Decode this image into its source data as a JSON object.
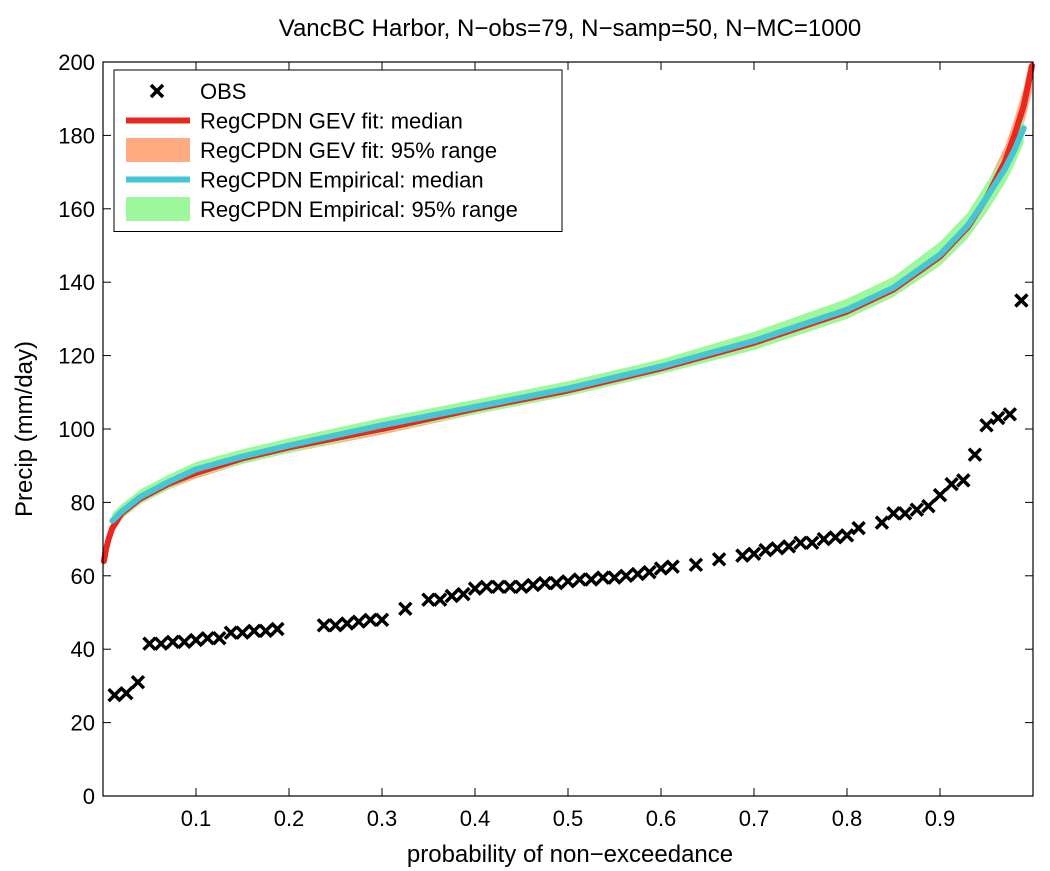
{
  "chart_data": {
    "type": "line",
    "title": "VancBC Harbor, N−obs=79, N−samp=50, N−MC=1000",
    "xlabel": "probability of non−exceedance",
    "ylabel": "Precip (mm/day)",
    "xlim": [
      0,
      1
    ],
    "ylim": [
      0,
      200
    ],
    "xticks": [
      0.1,
      0.2,
      0.3,
      0.4,
      0.5,
      0.6,
      0.7,
      0.8,
      0.9
    ],
    "xtick_labels": [
      "0.1",
      "0.2",
      "0.3",
      "0.4",
      "0.5",
      "0.6",
      "0.7",
      "0.8",
      "0.9"
    ],
    "yticks": [
      0,
      20,
      40,
      60,
      80,
      100,
      120,
      140,
      160,
      180,
      200
    ],
    "ytick_labels": [
      "0",
      "20",
      "40",
      "60",
      "80",
      "100",
      "120",
      "140",
      "160",
      "180",
      "200"
    ],
    "grid": false,
    "legend_position": "top-left",
    "colors": {
      "obs": "#000000",
      "gev_median": "#e8281e",
      "gev_range": "#ffaa80",
      "emp_median": "#45c6d6",
      "emp_range": "#9ff79b"
    },
    "legend": [
      {
        "label": "OBS",
        "kind": "marker",
        "color_key": "obs"
      },
      {
        "label": "RegCPDN GEV fit: median",
        "kind": "line",
        "color_key": "gev_median"
      },
      {
        "label": "RegCPDN GEV fit: 95% range",
        "kind": "band",
        "color_key": "gev_range"
      },
      {
        "label": "RegCPDN Empirical: median",
        "kind": "line",
        "color_key": "emp_median"
      },
      {
        "label": "RegCPDN Empirical: 95% range",
        "kind": "band",
        "color_key": "emp_range"
      }
    ],
    "series": [
      {
        "name": "RegCPDN GEV fit: median",
        "kind": "line",
        "x": [
          0.001,
          0.003,
          0.006,
          0.01,
          0.02,
          0.04,
          0.07,
          0.1,
          0.15,
          0.2,
          0.3,
          0.4,
          0.5,
          0.6,
          0.7,
          0.8,
          0.85,
          0.9,
          0.93,
          0.95,
          0.97,
          0.98,
          0.99,
          0.995,
          0.999
        ],
        "y": [
          64,
          67,
          70,
          73,
          77,
          81,
          85,
          88,
          92,
          95,
          100,
          105.5,
          110.5,
          116.5,
          123.5,
          132,
          138,
          147,
          155,
          163,
          173,
          180,
          188,
          194,
          199
        ]
      },
      {
        "name": "RegCPDN Empirical: median",
        "kind": "line",
        "x": [
          0.01,
          0.02,
          0.04,
          0.07,
          0.1,
          0.15,
          0.2,
          0.3,
          0.4,
          0.5,
          0.6,
          0.7,
          0.8,
          0.85,
          0.9,
          0.93,
          0.95,
          0.97,
          0.98,
          0.99
        ],
        "y": [
          75,
          77.5,
          81.5,
          85.5,
          89,
          92.5,
          95.5,
          101,
          106,
          111,
          117,
          124,
          132.5,
          138.5,
          147.5,
          155.5,
          163,
          171,
          176,
          182
        ]
      },
      {
        "name": "RegCPDN GEV fit: 95% range",
        "kind": "band",
        "x": [
          0.001,
          0.003,
          0.006,
          0.01,
          0.02,
          0.04,
          0.07,
          0.1,
          0.15,
          0.2,
          0.3,
          0.4,
          0.5,
          0.6,
          0.7,
          0.8,
          0.85,
          0.9,
          0.93,
          0.95,
          0.97,
          0.98,
          0.99,
          0.995,
          0.999
        ],
        "y_low": [
          62,
          65,
          68.5,
          71.5,
          75.5,
          79.5,
          83.5,
          86.5,
          90.5,
          93.5,
          98.5,
          104,
          109,
          115,
          122,
          130,
          136,
          144.5,
          152,
          159.5,
          169,
          175.5,
          183,
          188,
          192
        ],
        "y_high": [
          66,
          69,
          71.5,
          74.5,
          78.5,
          82.5,
          86.5,
          89.5,
          93.5,
          96.5,
          101.5,
          107,
          112,
          118,
          125,
          134,
          140,
          149.5,
          158,
          166.5,
          177,
          184.5,
          193,
          199,
          200
        ]
      },
      {
        "name": "RegCPDN Empirical: 95% range",
        "kind": "band",
        "x": [
          0.01,
          0.02,
          0.04,
          0.07,
          0.1,
          0.15,
          0.2,
          0.3,
          0.4,
          0.5,
          0.6,
          0.7,
          0.8,
          0.85,
          0.9,
          0.93,
          0.95,
          0.97,
          0.98,
          0.99
        ],
        "y_low": [
          73,
          75.5,
          79.5,
          83.5,
          87,
          90.5,
          93.5,
          99,
          104,
          109,
          115,
          121.5,
          130,
          136,
          144.5,
          152,
          159,
          167,
          172,
          178
        ],
        "y_high": [
          77,
          79.5,
          83.5,
          87.5,
          91,
          94.5,
          97.5,
          103,
          108,
          113,
          119,
          126.5,
          135.5,
          141.5,
          151,
          159,
          167,
          175,
          180,
          186
        ]
      },
      {
        "name": "OBS",
        "kind": "scatter",
        "x": [
          0.0125,
          0.025,
          0.0375,
          0.05,
          0.0625,
          0.075,
          0.0875,
          0.1,
          0.1125,
          0.125,
          0.1375,
          0.15,
          0.1625,
          0.175,
          0.1875,
          0.2375,
          0.25,
          0.2625,
          0.275,
          0.2875,
          0.3,
          0.325,
          0.35,
          0.3625,
          0.375,
          0.3875,
          0.4,
          0.4125,
          0.425,
          0.4375,
          0.45,
          0.4625,
          0.475,
          0.4875,
          0.5,
          0.5125,
          0.525,
          0.5375,
          0.55,
          0.5625,
          0.575,
          0.5875,
          0.6,
          0.6125,
          0.6375,
          0.6625,
          0.6875,
          0.7,
          0.7125,
          0.725,
          0.7375,
          0.75,
          0.7625,
          0.775,
          0.7875,
          0.8,
          0.8125,
          0.8375,
          0.85,
          0.8625,
          0.875,
          0.8875,
          0.9,
          0.9125,
          0.925,
          0.9375,
          0.95,
          0.9625,
          0.975,
          0.9875
        ],
        "y": [
          27.5,
          28,
          31,
          41.5,
          41.5,
          42,
          42,
          42.5,
          43,
          43,
          44.5,
          44.5,
          45,
          45,
          45.5,
          46.5,
          46.5,
          47,
          47.5,
          48,
          48,
          51,
          53.5,
          53.5,
          54.5,
          55,
          56.5,
          57,
          57,
          57,
          57,
          57.5,
          58,
          58,
          58.5,
          59,
          59,
          59.5,
          59.5,
          60,
          60.5,
          61,
          62,
          62.5,
          63,
          64.5,
          65.5,
          66,
          67,
          67.5,
          68,
          69,
          69,
          70,
          70.5,
          71,
          73,
          74.5,
          77,
          77,
          78,
          79,
          82,
          85,
          86,
          93,
          101,
          103,
          104,
          135
        ]
      }
    ]
  }
}
